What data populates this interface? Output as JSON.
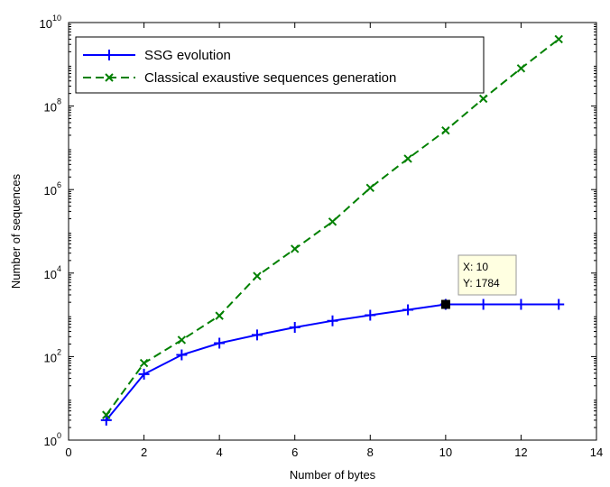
{
  "chart_data": {
    "type": "line",
    "xlabel": "Number of bytes",
    "ylabel": "Number of sequences",
    "xlim": [
      0,
      14
    ],
    "ylim": [
      1,
      10000000000
    ],
    "yscale": "log",
    "grid": false,
    "legend_position": "top-left",
    "x_ticks": [
      "0",
      "2",
      "4",
      "6",
      "8",
      "10",
      "12",
      "14"
    ],
    "y_ticks": [
      {
        "base": "10",
        "exp": "0"
      },
      {
        "base": "10",
        "exp": "2"
      },
      {
        "base": "10",
        "exp": "4"
      },
      {
        "base": "10",
        "exp": "6"
      },
      {
        "base": "10",
        "exp": "8"
      },
      {
        "base": "10",
        "exp": "10"
      }
    ],
    "series": [
      {
        "name": "SSG evolution",
        "color": "#0000ff",
        "marker": "plus",
        "line": "solid",
        "x": [
          1,
          2,
          3,
          4,
          5,
          6,
          7,
          8,
          9,
          10,
          11,
          12,
          13
        ],
        "y": [
          3,
          38,
          110,
          210,
          330,
          500,
          720,
          980,
          1320,
          1784,
          1784,
          1784,
          1784
        ]
      },
      {
        "name": "Classical exaustive sequences generation",
        "color": "#008000",
        "marker": "x",
        "line": "dashed",
        "x": [
          1,
          2,
          3,
          4,
          5,
          6,
          7,
          8,
          9,
          10,
          11,
          12,
          13
        ],
        "y": [
          4,
          70,
          250,
          950,
          8500,
          38000,
          170000,
          1100000,
          5500000,
          26000000,
          150000000,
          800000000,
          4000000000
        ]
      }
    ],
    "datatip": {
      "x_text": "X: 10",
      "y_text": "Y: 1784",
      "x": 10,
      "y": 1784
    }
  }
}
